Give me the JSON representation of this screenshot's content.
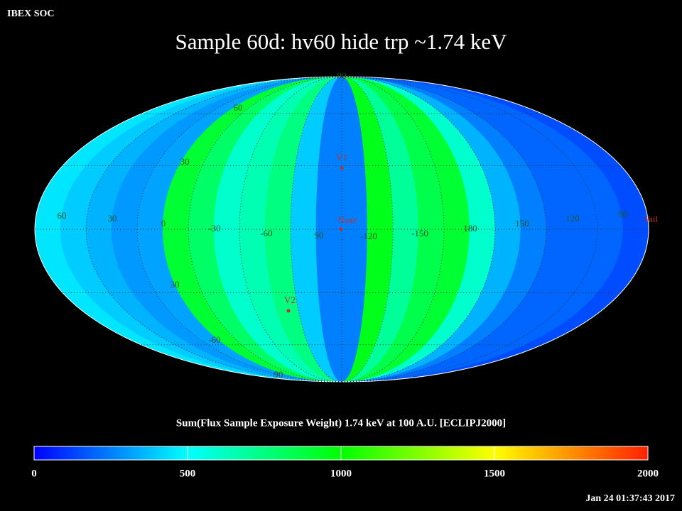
{
  "header": "IBEX SOC",
  "title": "Sample 60d: hv60 hide trp ~1.74 keV",
  "map": {
    "band_flux": [
      450,
      400,
      350,
      300,
      320,
      900,
      800,
      600,
      650,
      750,
      400,
      250,
      250,
      950,
      700,
      850,
      900,
      600,
      350,
      250,
      200,
      200,
      200,
      150
    ],
    "grid_labels": [
      "90",
      "60",
      "30",
      "60",
      "30",
      "0",
      "-30",
      "-60",
      "90",
      "-120",
      "-150",
      "180",
      "150",
      "120",
      "90",
      "30",
      "-60",
      "90"
    ],
    "markers": [
      "V1",
      "Nose",
      "V2",
      "Tail"
    ]
  },
  "colorbar": {
    "title": "Sum(Flux Sample Exposure Weight)  1.74 keV at 100 A.U. [ECLIPJ2000]",
    "range": [
      0,
      2000
    ],
    "ticks": [
      0,
      500,
      1000,
      1500,
      2000
    ],
    "colors": [
      "#0000ff",
      "#00ffff",
      "#00ff00",
      "#ffff00",
      "#ff2000"
    ]
  },
  "timestamp": "Jan 24 01:37:43 2017"
}
